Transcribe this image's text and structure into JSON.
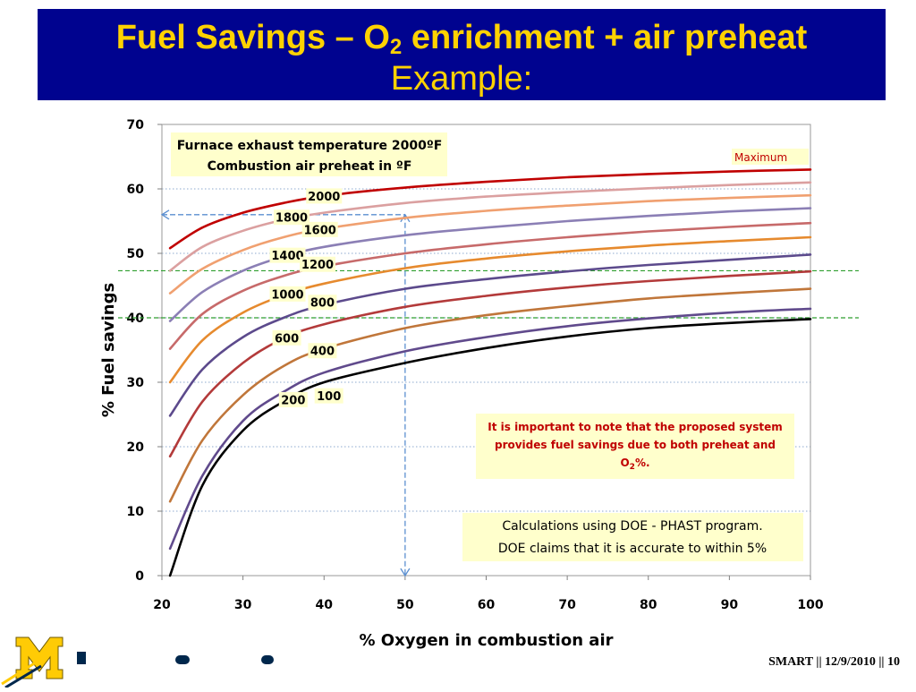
{
  "slide": {
    "title_pre": "Fuel Savings – O",
    "title_sub": "2",
    "title_post": " enrichment + air preheat",
    "subtitle": "Example:",
    "footer": "SMART || 12/9/2010 || 10"
  },
  "colors": {
    "title_bg": "#00038f",
    "title_text": "#ffd200",
    "label_box": "#ffffcc",
    "note_text": "#c00000",
    "reference_line": "#2e9e2e",
    "projection_line": "#5b8fd0"
  },
  "chart_data": {
    "type": "line",
    "xlabel": "% Oxygen in combustion air",
    "ylabel": "% Fuel savings",
    "xlim": [
      20,
      100
    ],
    "ylim": [
      0,
      70
    ],
    "xticks": [
      20,
      30,
      40,
      50,
      60,
      70,
      80,
      90,
      100
    ],
    "yticks": [
      0,
      10,
      20,
      30,
      40,
      50,
      60,
      70
    ],
    "grid": "horizontal-dotted",
    "legend_box": {
      "line1": "Furnace exhaust temperature 2000ºF",
      "line2": "Combustion air preheat in ºF"
    },
    "series": [
      {
        "name": "100",
        "color": "#000000",
        "x": [
          21,
          25,
          30,
          35,
          40,
          50,
          60,
          70,
          80,
          90,
          100
        ],
        "y": [
          0,
          14,
          22.5,
          27,
          30,
          33,
          35.3,
          37.1,
          38.4,
          39.2,
          39.8
        ]
      },
      {
        "name": "200",
        "color": "#604a8c",
        "x": [
          21,
          25,
          30,
          35,
          40,
          50,
          60,
          70,
          80,
          90,
          100
        ],
        "y": [
          4.2,
          15.5,
          24,
          28.5,
          31.5,
          34.8,
          37,
          38.7,
          39.9,
          40.8,
          41.4
        ]
      },
      {
        "name": "400",
        "color": "#c0763a",
        "x": [
          21,
          25,
          30,
          35,
          40,
          50,
          60,
          70,
          80,
          90,
          100
        ],
        "y": [
          11.5,
          21,
          28,
          32.5,
          35.2,
          38.4,
          40.4,
          41.8,
          43,
          43.8,
          44.5
        ]
      },
      {
        "name": "600",
        "color": "#b33a3a",
        "x": [
          21,
          25,
          30,
          35,
          40,
          50,
          60,
          70,
          80,
          90,
          100
        ],
        "y": [
          18.5,
          27,
          33,
          36.8,
          39,
          41.7,
          43.4,
          44.7,
          45.7,
          46.5,
          47.2
        ]
      },
      {
        "name": "800",
        "color": "#5c4a8c",
        "x": [
          21,
          25,
          30,
          35,
          40,
          50,
          60,
          70,
          80,
          90,
          100
        ],
        "y": [
          24.8,
          32,
          37,
          40,
          42,
          44.5,
          46,
          47.2,
          48.2,
          49,
          49.8
        ]
      },
      {
        "name": "1000",
        "color": "#e68a2e",
        "x": [
          21,
          25,
          30,
          35,
          40,
          50,
          60,
          70,
          80,
          90,
          100
        ],
        "y": [
          30,
          36.5,
          40.8,
          43.5,
          45.3,
          47.7,
          49.2,
          50.3,
          51.2,
          51.9,
          52.5
        ]
      },
      {
        "name": "1200",
        "color": "#c76a6a",
        "x": [
          21,
          25,
          30,
          35,
          40,
          50,
          60,
          70,
          80,
          90,
          100
        ],
        "y": [
          35.2,
          40.6,
          44.2,
          46.5,
          48,
          50,
          51.4,
          52.5,
          53.4,
          54.1,
          54.7
        ]
      },
      {
        "name": "1400",
        "color": "#8b7fb5",
        "x": [
          21,
          25,
          30,
          35,
          40,
          50,
          60,
          70,
          80,
          90,
          100
        ],
        "y": [
          39.5,
          44,
          47.3,
          49.5,
          51,
          52.8,
          54,
          55,
          55.8,
          56.5,
          57
        ]
      },
      {
        "name": "1600",
        "color": "#f0a070",
        "x": [
          21,
          25,
          30,
          35,
          40,
          50,
          60,
          70,
          80,
          90,
          100
        ],
        "y": [
          43.8,
          47.6,
          50.5,
          52.5,
          53.8,
          55.5,
          56.6,
          57.4,
          58.1,
          58.6,
          59
        ]
      },
      {
        "name": "1800",
        "color": "#dba0a0",
        "x": [
          21,
          25,
          30,
          35,
          40,
          50,
          60,
          70,
          80,
          90,
          100
        ],
        "y": [
          47.3,
          51,
          53.5,
          55.2,
          56.3,
          57.8,
          58.8,
          59.5,
          60.1,
          60.6,
          61
        ]
      },
      {
        "name": "2000",
        "color": "#c00000",
        "x": [
          21,
          25,
          30,
          35,
          40,
          50,
          60,
          70,
          80,
          90,
          100
        ],
        "y": [
          50.8,
          54,
          56.3,
          57.8,
          58.9,
          60.2,
          61.1,
          61.8,
          62.3,
          62.7,
          63
        ]
      }
    ],
    "curve_labels": [
      {
        "text": "2000",
        "x": 40,
        "y": 58.9
      },
      {
        "text": "1800",
        "x": 36,
        "y": 55.6
      },
      {
        "text": "1600",
        "x": 39.5,
        "y": 53.7
      },
      {
        "text": "1400",
        "x": 35.5,
        "y": 49.7
      },
      {
        "text": "1200",
        "x": 39.2,
        "y": 48.3
      },
      {
        "text": "1000",
        "x": 35.5,
        "y": 43.7
      },
      {
        "text": "800",
        "x": 39.8,
        "y": 42.4
      },
      {
        "text": "600",
        "x": 35.4,
        "y": 36.9
      },
      {
        "text": "400",
        "x": 39.8,
        "y": 34.9
      },
      {
        "text": "200",
        "x": 36.2,
        "y": 27.3
      },
      {
        "text": "100",
        "x": 40.6,
        "y": 27.9
      }
    ],
    "maximum_label": "Maximum",
    "reference_lines_y": [
      40,
      47.3
    ],
    "projection": {
      "x_from": 20,
      "x_to": 50,
      "y": 56
    },
    "annotations": {
      "note": {
        "pre": "It is important to note that the proposed system provides fuel savings due to both preheat and O",
        "sub": "2",
        "post": "%."
      },
      "calc_line1": "Calculations using DOE - PHAST program.",
      "calc_line2": "DOE claims that it is accurate to within 5%"
    }
  }
}
